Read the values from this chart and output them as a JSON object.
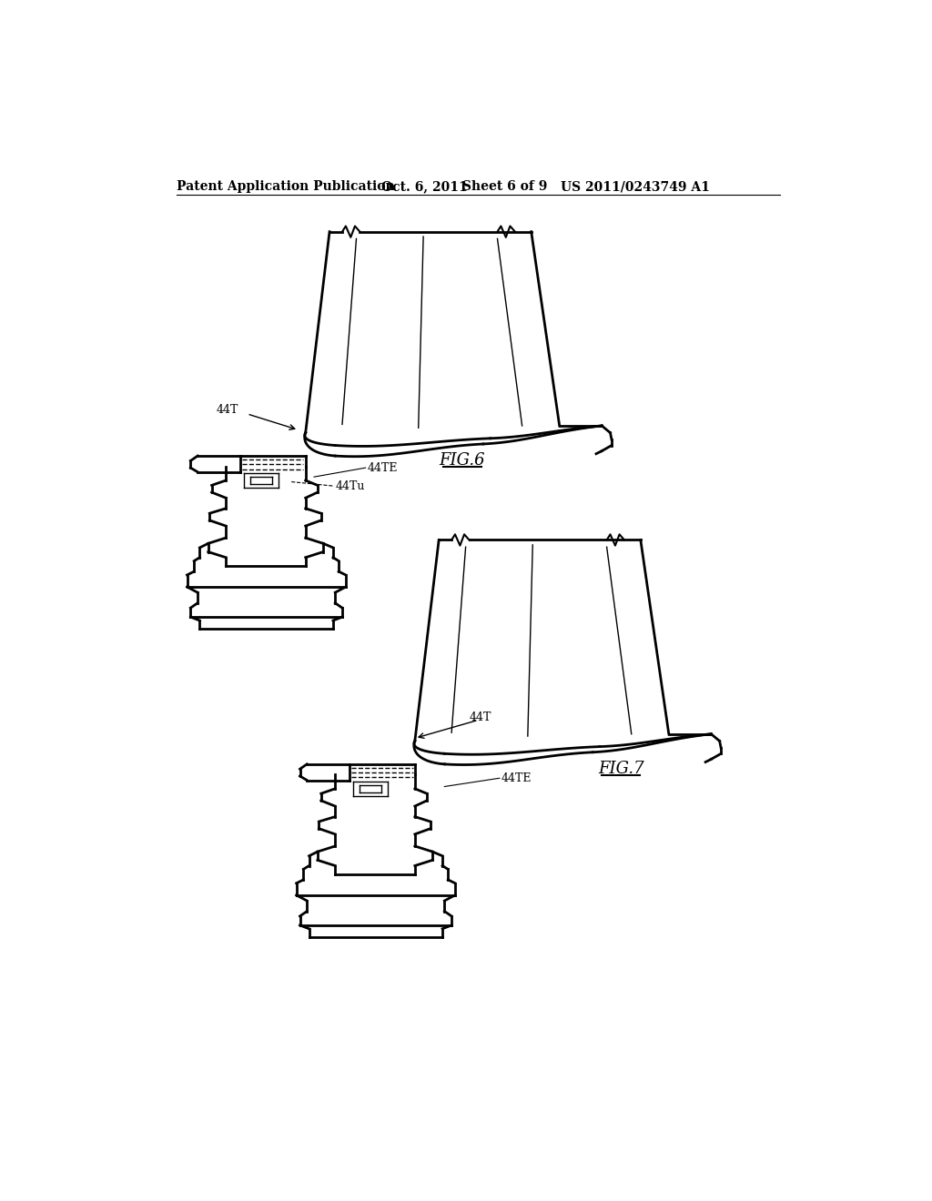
{
  "background_color": "#ffffff",
  "line_color": "#000000",
  "header_line1": "Patent Application Publication",
  "header_date": "Oct. 6, 2011",
  "header_sheet": "Sheet 6 of 9",
  "header_patent": "US 2011/0243749 A1",
  "fig6_label": "FIG.6",
  "fig7_label": "FIG.7",
  "label_44T_fig6": "44T",
  "label_44TE_fig6": "44TE",
  "label_44Tu_fig6": "44Tu",
  "label_44T_fig7": "44T",
  "label_44TE_fig7": "44TE"
}
